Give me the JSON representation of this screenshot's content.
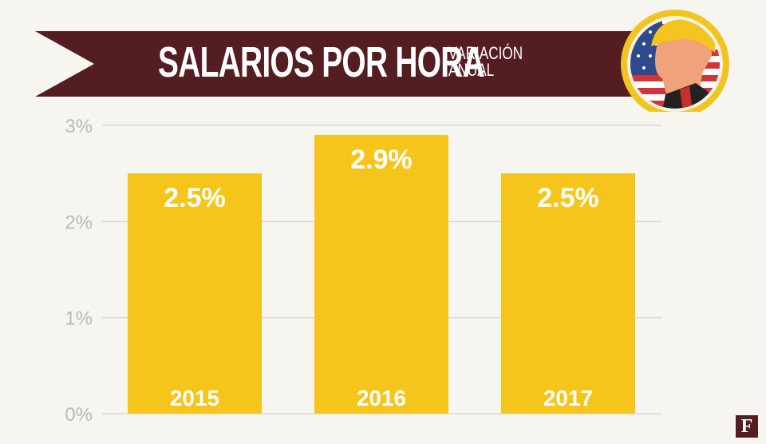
{
  "header": {
    "title": "SALARIOS POR HORA",
    "subtitle_line1": "VARIACIÓN",
    "subtitle_line2": "ANUAL",
    "banner_color": "#541d22",
    "badge_icon": "trump-flag-portrait-icon"
  },
  "brand": {
    "logo_letter": "F",
    "logo_icon": "forbes-logo-icon"
  },
  "colors": {
    "bar": "#f6c51b",
    "grid": "#d9d9d6",
    "tick": "#b9b9b9",
    "label": "#ffffff"
  },
  "chart_data": {
    "type": "bar",
    "categories": [
      "2015",
      "2016",
      "2017"
    ],
    "values": [
      2.5,
      2.9,
      2.5
    ],
    "value_labels": [
      "2.5%",
      "2.9%",
      "2.5%"
    ],
    "yticks": [
      0,
      1,
      2,
      3
    ],
    "ytick_labels": [
      "0%",
      "1%",
      "2%",
      "3%"
    ],
    "ylim": [
      0,
      3
    ],
    "grid": true,
    "legend": "none"
  }
}
